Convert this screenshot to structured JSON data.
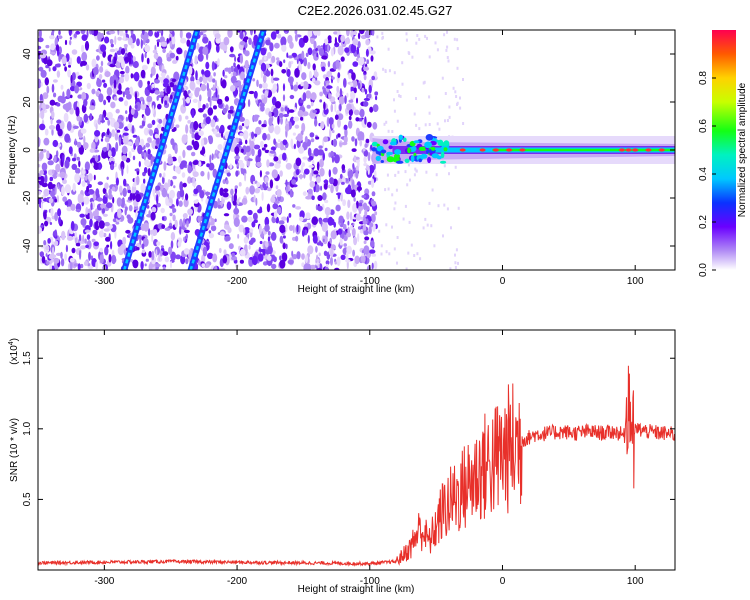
{
  "title": "C2E2.2026.031.02.45.G27",
  "colors": {
    "series": "#e8302a",
    "frame": "#000000"
  },
  "colorbar": {
    "label": "Normalized spectral amplitude",
    "ticks": [
      "0.0",
      "0.2",
      "0.4",
      "0.6",
      "0.8"
    ],
    "range": [
      0,
      1
    ]
  },
  "chart_data": [
    {
      "type": "heatmap",
      "xlabel": "Height of straight line (km)",
      "ylabel": "Frequency (Hz)",
      "xlim": [
        -350,
        130
      ],
      "ylim": [
        -50,
        50
      ],
      "xticks": [
        -300,
        -200,
        -100,
        0,
        100
      ],
      "yticks": [
        -40,
        -20,
        0,
        20,
        40
      ],
      "xtick_labels": [
        "-300",
        "-200",
        "-100",
        "0",
        "100"
      ],
      "ytick_labels": [
        "-40",
        "-20",
        "0",
        "20",
        "40"
      ],
      "noise_region": [
        -350,
        -95
      ],
      "tracks": [
        {
          "from": [
            -285,
            -50
          ],
          "to": [
            -230,
            50
          ]
        },
        {
          "from": [
            -235,
            -50
          ],
          "to": [
            -180,
            50
          ]
        }
      ],
      "signal": {
        "x_start": -98,
        "frequency": 0
      }
    },
    {
      "type": "line",
      "xlabel": "Height of straight line (km)",
      "ylabel": "SNR (10 * v/v)",
      "y_multiplier_label": "(x10",
      "y_multiplier_exp": "4",
      "y_multiplier_close": ")",
      "xlim": [
        -350,
        130
      ],
      "ylim": [
        0,
        17000
      ],
      "xticks": [
        -300,
        -200,
        -100,
        0,
        100
      ],
      "yticks": [
        5000,
        10000,
        15000
      ],
      "xtick_labels": [
        "-300",
        "-200",
        "-100",
        "0",
        "100"
      ],
      "ytick_labels": [
        "0.5",
        "1.0",
        "1.5"
      ],
      "envelope": {
        "x": [
          -350,
          -300,
          -250,
          -200,
          -150,
          -100,
          -80,
          -70,
          -62,
          -55,
          -45,
          -35,
          -25,
          -15,
          -5,
          5,
          15,
          25,
          35,
          45,
          55,
          65,
          75,
          85,
          92,
          95,
          98,
          100,
          110,
          120,
          130
        ],
        "y": [
          500,
          550,
          600,
          550,
          500,
          450,
          600,
          1500,
          3000,
          2000,
          4200,
          5200,
          6200,
          7200,
          7800,
          8600,
          9200,
          9600,
          9700,
          9800,
          9700,
          9800,
          9700,
          9800,
          9500,
          12500,
          8000,
          10000,
          9800,
          9700,
          9600
        ]
      }
    }
  ]
}
